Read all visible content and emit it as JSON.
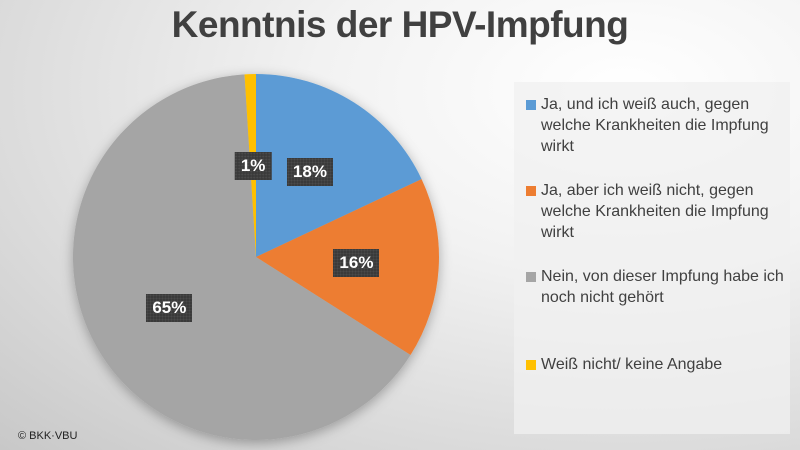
{
  "chart_data": {
    "type": "pie",
    "title": "Kenntnis der HPV-Impfung",
    "start_angle": "top",
    "direction": "clockwise",
    "legend_position": "right",
    "slices": [
      {
        "label": "Ja, und ich weiß auch, gegen welche Krankheiten die Impfung wirkt",
        "value": 18,
        "data_label": "18%",
        "color": "#5b9bd5"
      },
      {
        "label": "Ja, aber ich weiß nicht, gegen welche Krankheiten die Impfung wirkt",
        "value": 16,
        "data_label": "16%",
        "color": "#ed7d31"
      },
      {
        "label": "Nein, von dieser Impfung habe ich noch nicht gehört",
        "value": 65,
        "data_label": "65%",
        "color": "#a5a5a5"
      },
      {
        "label": "Weiß nicht/ keine Angabe",
        "value": 1,
        "data_label": "1%",
        "color": "#ffc000"
      }
    ]
  },
  "copyright": "© BKK·VBU"
}
